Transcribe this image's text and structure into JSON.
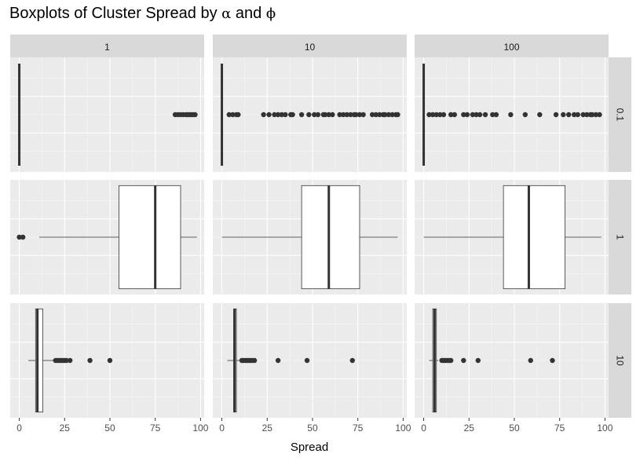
{
  "chart_data": {
    "type": "boxplot",
    "title_prefix": "Boxplots of Cluster Spread by",
    "title_alpha": "α",
    "title_and": "and",
    "title_phi": "ϕ",
    "xlabel": "Spread",
    "xlim": [
      -5,
      102
    ],
    "xticks": [
      0,
      25,
      50,
      75,
      100
    ],
    "grid": true,
    "col_facet": {
      "variable": "alpha",
      "levels": [
        "1",
        "10",
        "100"
      ]
    },
    "row_facet": {
      "variable": "phi",
      "levels": [
        "0.1",
        "1",
        "10"
      ]
    },
    "colors": {
      "panel_bg": "#ebebeb",
      "strip_bg": "#d9d9d9",
      "grid_major": "#ffffff",
      "grid_minor": "#f5f5f5",
      "box_line": "#333333",
      "box_fill": "#ffffff",
      "outlier": "#333333",
      "text": "#1a1a1a",
      "tick_text": "#4d4d4d"
    },
    "panels": [
      {
        "row": 0,
        "col": 0,
        "min": 0,
        "q1": 0,
        "median": 0,
        "q3": 0,
        "max": 0,
        "outliers": [
          86,
          87.5,
          89,
          90.5,
          92,
          93,
          94,
          95,
          96,
          97
        ]
      },
      {
        "row": 0,
        "col": 1,
        "min": 0,
        "q1": 0,
        "median": 0,
        "q3": 0,
        "max": 0,
        "outliers": [
          4,
          6,
          8,
          9,
          23,
          26,
          29,
          31,
          33,
          35,
          38,
          39,
          44,
          48,
          51,
          53,
          56,
          57,
          59,
          61,
          65,
          67,
          69,
          71,
          73,
          74,
          76,
          78,
          83,
          85,
          87,
          89,
          90,
          92,
          94,
          96,
          97
        ]
      },
      {
        "row": 0,
        "col": 2,
        "min": 0,
        "q1": 0,
        "median": 0,
        "q3": 0,
        "max": 0,
        "outliers": [
          3,
          5,
          7,
          9,
          11,
          15,
          17,
          22,
          24,
          27,
          29,
          31,
          34,
          38,
          40,
          48,
          56,
          64,
          73,
          77,
          80,
          83,
          85,
          88,
          90,
          92,
          93,
          95,
          97
        ]
      },
      {
        "row": 1,
        "col": 0,
        "min": 11,
        "q1": 55,
        "median": 75,
        "q3": 89,
        "max": 98,
        "outliers": [
          0,
          2
        ]
      },
      {
        "row": 1,
        "col": 1,
        "min": 0,
        "q1": 44,
        "median": 59,
        "q3": 76,
        "max": 97,
        "outliers": []
      },
      {
        "row": 1,
        "col": 2,
        "min": 0,
        "q1": 44,
        "median": 58,
        "q3": 78,
        "max": 98,
        "outliers": []
      },
      {
        "row": 2,
        "col": 0,
        "min": 5,
        "q1": 9,
        "median": 10,
        "q3": 13,
        "max": 19,
        "outliers": [
          20,
          21,
          22,
          23,
          24,
          25,
          26,
          28,
          39,
          50
        ]
      },
      {
        "row": 2,
        "col": 1,
        "min": 3,
        "q1": 6.5,
        "median": 7,
        "q3": 8,
        "max": 10,
        "outliers": [
          11,
          12,
          13,
          14,
          15,
          16,
          17,
          18,
          31,
          47,
          72
        ]
      },
      {
        "row": 2,
        "col": 2,
        "min": 3,
        "q1": 5,
        "median": 6,
        "q3": 7,
        "max": 8,
        "outliers": [
          10,
          11,
          12,
          13,
          14,
          15,
          22,
          30,
          59,
          71
        ]
      }
    ]
  }
}
